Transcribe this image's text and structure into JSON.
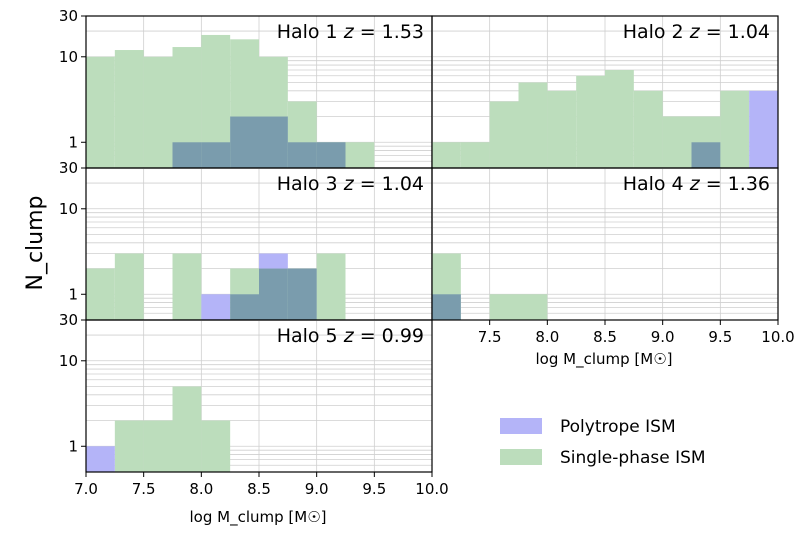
{
  "chart_data": {
    "type": "bar",
    "ylabel": "N_clump",
    "xlabel": "log M_clump [M☉]",
    "yscale": "log",
    "ylim": [
      0.5,
      30
    ],
    "xlim": [
      7.0,
      10.0
    ],
    "bin_width": 0.25,
    "ytick_values": [
      1,
      10,
      30
    ],
    "ytick_labels": [
      "1",
      "10",
      "30"
    ],
    "xtick_values": [
      7.0,
      7.5,
      8.0,
      8.5,
      9.0,
      9.5,
      10.0
    ],
    "xtick_labels": [
      "7.0",
      "7.5",
      "8.0",
      "8.5",
      "9.0",
      "9.5",
      "10.0"
    ],
    "bottom_axis_xtick_labels": [
      "7.0",
      "7.5",
      "8.0",
      "8.5",
      "9.0",
      "9.5",
      "10.0"
    ],
    "right_axis_xtick_labels": [
      "7.5",
      "8.0",
      "8.5",
      "9.0",
      "9.5",
      "10.0"
    ],
    "grid": true,
    "legend": {
      "placement": "bottom-right",
      "entries": [
        {
          "name": "Polytrope ISM",
          "color": "#b4b4f8"
        },
        {
          "name": "Single-phase ISM",
          "color": "#bcddbc"
        }
      ]
    },
    "colors": {
      "polytrope": "#b4b4f8",
      "single_phase": "#bcddbc",
      "overlap": "#7a9cad"
    },
    "panels": [
      {
        "halo": "Halo 1",
        "z_label": "z = 1.53",
        "single_phase": [
          {
            "x": 7.0,
            "n": 10
          },
          {
            "x": 7.25,
            "n": 12
          },
          {
            "x": 7.5,
            "n": 10
          },
          {
            "x": 7.75,
            "n": 13
          },
          {
            "x": 8.0,
            "n": 18
          },
          {
            "x": 8.25,
            "n": 16
          },
          {
            "x": 8.5,
            "n": 10
          },
          {
            "x": 8.75,
            "n": 3
          },
          {
            "x": 9.0,
            "n": 1
          },
          {
            "x": 9.25,
            "n": 1
          }
        ],
        "polytrope": [
          {
            "x": 7.75,
            "n": 1
          },
          {
            "x": 8.0,
            "n": 1
          },
          {
            "x": 8.25,
            "n": 2
          },
          {
            "x": 8.5,
            "n": 2
          },
          {
            "x": 8.75,
            "n": 1
          },
          {
            "x": 9.0,
            "n": 1
          }
        ]
      },
      {
        "halo": "Halo 2",
        "z_label": "z = 1.04",
        "single_phase": [
          {
            "x": 7.0,
            "n": 1
          },
          {
            "x": 7.25,
            "n": 1
          },
          {
            "x": 7.5,
            "n": 3
          },
          {
            "x": 7.75,
            "n": 5
          },
          {
            "x": 8.0,
            "n": 4
          },
          {
            "x": 8.25,
            "n": 6
          },
          {
            "x": 8.5,
            "n": 7
          },
          {
            "x": 8.75,
            "n": 4
          },
          {
            "x": 9.0,
            "n": 2
          },
          {
            "x": 9.25,
            "n": 2
          },
          {
            "x": 9.5,
            "n": 4
          }
        ],
        "polytrope": [
          {
            "x": 9.25,
            "n": 1
          },
          {
            "x": 9.75,
            "n": 4
          }
        ]
      },
      {
        "halo": "Halo 3",
        "z_label": "z = 1.04",
        "single_phase": [
          {
            "x": 7.0,
            "n": 2
          },
          {
            "x": 7.25,
            "n": 3
          },
          {
            "x": 7.75,
            "n": 3
          },
          {
            "x": 8.25,
            "n": 2
          },
          {
            "x": 8.5,
            "n": 2
          },
          {
            "x": 8.75,
            "n": 2
          },
          {
            "x": 9.0,
            "n": 3
          }
        ],
        "polytrope": [
          {
            "x": 8.0,
            "n": 1
          },
          {
            "x": 8.25,
            "n": 1
          },
          {
            "x": 8.5,
            "n": 3
          },
          {
            "x": 8.75,
            "n": 2
          }
        ]
      },
      {
        "halo": "Halo 4",
        "z_label": "z = 1.36",
        "single_phase": [
          {
            "x": 7.0,
            "n": 3
          },
          {
            "x": 7.5,
            "n": 1
          },
          {
            "x": 7.75,
            "n": 1
          }
        ],
        "polytrope": [
          {
            "x": 7.0,
            "n": 1
          }
        ]
      },
      {
        "halo": "Halo 5",
        "z_label": "z = 0.99",
        "single_phase": [
          {
            "x": 7.25,
            "n": 2
          },
          {
            "x": 7.5,
            "n": 2
          },
          {
            "x": 7.75,
            "n": 5
          },
          {
            "x": 8.0,
            "n": 2
          }
        ],
        "polytrope": [
          {
            "x": 7.0,
            "n": 1
          }
        ]
      }
    ]
  }
}
